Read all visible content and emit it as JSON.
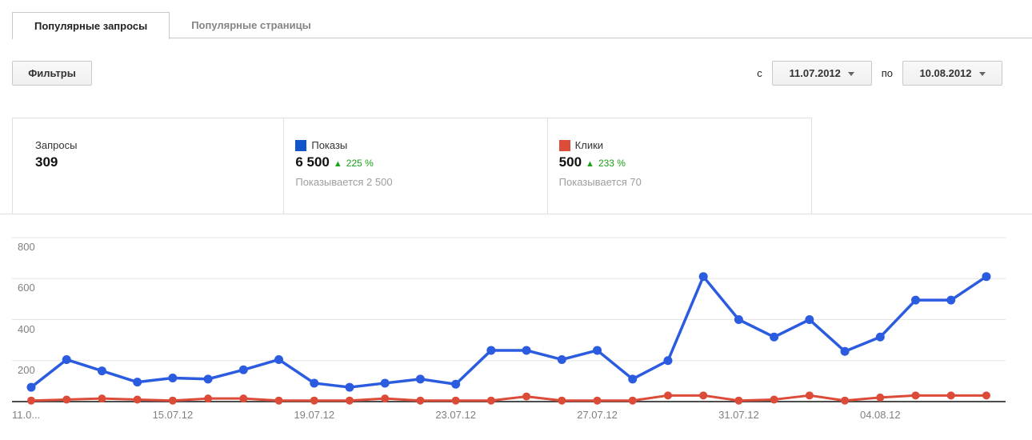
{
  "tabs": [
    {
      "label": "Популярные запросы",
      "active": true
    },
    {
      "label": "Популярные страницы",
      "active": false
    }
  ],
  "toolbar": {
    "filters_label": "Фильтры",
    "from_label": "с",
    "from_value": "11.07.2012",
    "to_label": "по",
    "to_value": "10.08.2012"
  },
  "summary": {
    "queries": {
      "label": "Запросы",
      "value": "309"
    },
    "impressions": {
      "label": "Показы",
      "value": "6 500",
      "delta": "225 %",
      "note": "Показывается 2 500",
      "color": "#1155cc"
    },
    "clicks": {
      "label": "Клики",
      "value": "500",
      "delta": "233 %",
      "note": "Показывается 70",
      "color": "#dd4b39"
    }
  },
  "colors": {
    "impressions_line": "#2b5ce0",
    "clicks_line": "#dc4a38",
    "delta_green": "#18a018",
    "grid": "#e4e4e4",
    "axis": "#4d4d4d",
    "tick_label": "#808080"
  },
  "chart_data": {
    "type": "line",
    "x": [
      "11.07.12",
      "12.07.12",
      "13.07.12",
      "14.07.12",
      "15.07.12",
      "16.07.12",
      "17.07.12",
      "18.07.12",
      "19.07.12",
      "20.07.12",
      "21.07.12",
      "22.07.12",
      "23.07.12",
      "24.07.12",
      "25.07.12",
      "26.07.12",
      "27.07.12",
      "28.07.12",
      "29.07.12",
      "30.07.12",
      "31.07.12",
      "01.08.12",
      "02.08.12",
      "03.08.12",
      "04.08.12",
      "05.08.12",
      "06.08.12",
      "07.08.12"
    ],
    "series": [
      {
        "name": "Показы",
        "color": "#2b5ce0",
        "values": [
          70,
          205,
          150,
          95,
          115,
          110,
          155,
          205,
          90,
          70,
          90,
          110,
          85,
          250,
          250,
          205,
          250,
          110,
          200,
          610,
          400,
          315,
          400,
          245,
          315,
          495,
          495,
          610
        ]
      },
      {
        "name": "Клики",
        "color": "#dc4a38",
        "values": [
          5,
          10,
          15,
          10,
          5,
          15,
          15,
          5,
          5,
          5,
          15,
          5,
          5,
          5,
          25,
          5,
          5,
          5,
          30,
          30,
          5,
          10,
          30,
          5,
          20,
          30,
          30,
          30
        ]
      }
    ],
    "ylim": [
      0,
      800
    ],
    "yticks": [
      200,
      400,
      600,
      800
    ],
    "xticks": [
      {
        "i": 0,
        "label": "11.0..."
      },
      {
        "i": 4,
        "label": "15.07.12"
      },
      {
        "i": 8,
        "label": "19.07.12"
      },
      {
        "i": 12,
        "label": "23.07.12"
      },
      {
        "i": 16,
        "label": "27.07.12"
      },
      {
        "i": 20,
        "label": "31.07.12"
      },
      {
        "i": 24,
        "label": "04.08.12"
      }
    ],
    "grid": true,
    "legend_position": "in-summary-cells"
  }
}
